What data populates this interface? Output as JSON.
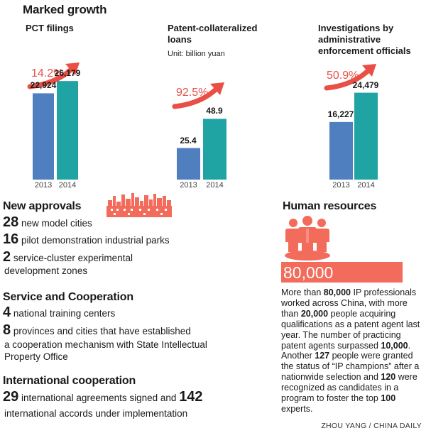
{
  "title": "Marked growth",
  "charts": [
    {
      "title": "PCT filings",
      "unit": "",
      "growth": "14.2%",
      "years": [
        "2013",
        "2014"
      ],
      "labels": [
        "22,924",
        "26,179"
      ],
      "values": [
        22924,
        26179
      ],
      "ylim": [
        0,
        33000
      ]
    },
    {
      "title": "Patent-collateralized loans",
      "unit": "Unit: billion yuan",
      "growth": "92.5%",
      "years": [
        "2013",
        "2014"
      ],
      "labels": [
        "25.4",
        "48.9"
      ],
      "values": [
        25.4,
        48.9
      ],
      "ylim": [
        0,
        100
      ]
    },
    {
      "title": "Investigations by administrative enforcement officials",
      "unit": "",
      "growth": "50.9%",
      "years": [
        "2013",
        "2014"
      ],
      "labels": [
        "16,227",
        "24,479"
      ],
      "values": [
        16227,
        24479
      ],
      "ylim": [
        0,
        35000
      ]
    }
  ],
  "chart_data": [
    {
      "type": "bar",
      "title": "PCT filings",
      "categories": [
        "2013",
        "2014"
      ],
      "values": [
        22924,
        26179
      ],
      "annotations": [
        "14.2%"
      ]
    },
    {
      "type": "bar",
      "title": "Patent-collateralized loans",
      "ylabel": "Unit: billion yuan",
      "categories": [
        "2013",
        "2014"
      ],
      "values": [
        25.4,
        48.9
      ],
      "annotations": [
        "92.5%"
      ]
    },
    {
      "type": "bar",
      "title": "Investigations by administrative enforcement officials",
      "categories": [
        "2013",
        "2014"
      ],
      "values": [
        16227,
        24479
      ],
      "annotations": [
        "50.9%"
      ]
    }
  ],
  "colors": {
    "bar_2013": "#4f7fbe",
    "bar_2014": "#1fa3a3",
    "accent_red": "#e94f45",
    "skyline": "#f26b5b"
  },
  "new_approvals": {
    "heading": "New approvals",
    "items": [
      {
        "num": "28",
        "text": "new model cities"
      },
      {
        "num": "16",
        "text": "pilot demonstration industrial parks"
      },
      {
        "num": "2",
        "text": "service-cluster experimental",
        "text2": "development zones"
      }
    ]
  },
  "service": {
    "heading": "Service and Cooperation",
    "items": [
      {
        "num": "4",
        "text": "national training centers"
      },
      {
        "num": "8",
        "text": "provinces and cities that have established",
        "text2": "a cooperation mechanism with State Intellectual",
        "text3": "Property Office"
      }
    ]
  },
  "international": {
    "heading": "International cooperation",
    "num1": "29",
    "text1": "international agreements signed and",
    "num2": "142",
    "text2": "international accords under implementation"
  },
  "human_resources": {
    "heading": "Human resources",
    "figure": "80,000",
    "icon": "people-group-icon",
    "paragraph": [
      {
        "t": "More than ",
        "b": false
      },
      {
        "t": "80,000",
        "b": true
      },
      {
        "t": " IP professionals worked across China, with more than ",
        "b": false
      },
      {
        "t": "20,000",
        "b": true
      },
      {
        "t": " people acquiring qualifications as a patent agent last year. The number of practicing patent agents surpassed ",
        "b": false
      },
      {
        "t": "10,000",
        "b": true
      },
      {
        "t": ". Another ",
        "b": false
      },
      {
        "t": "127",
        "b": true
      },
      {
        "t": " people were granted the status of “IP champions” after a nationwide selection and ",
        "b": false
      },
      {
        "t": "120",
        "b": true
      },
      {
        "t": " were recognized as candidates in a program to foster the top ",
        "b": false
      },
      {
        "t": "100",
        "b": true
      },
      {
        "t": " experts.",
        "b": false
      }
    ]
  },
  "credit": "ZHOU YANG / CHINA DAILY"
}
